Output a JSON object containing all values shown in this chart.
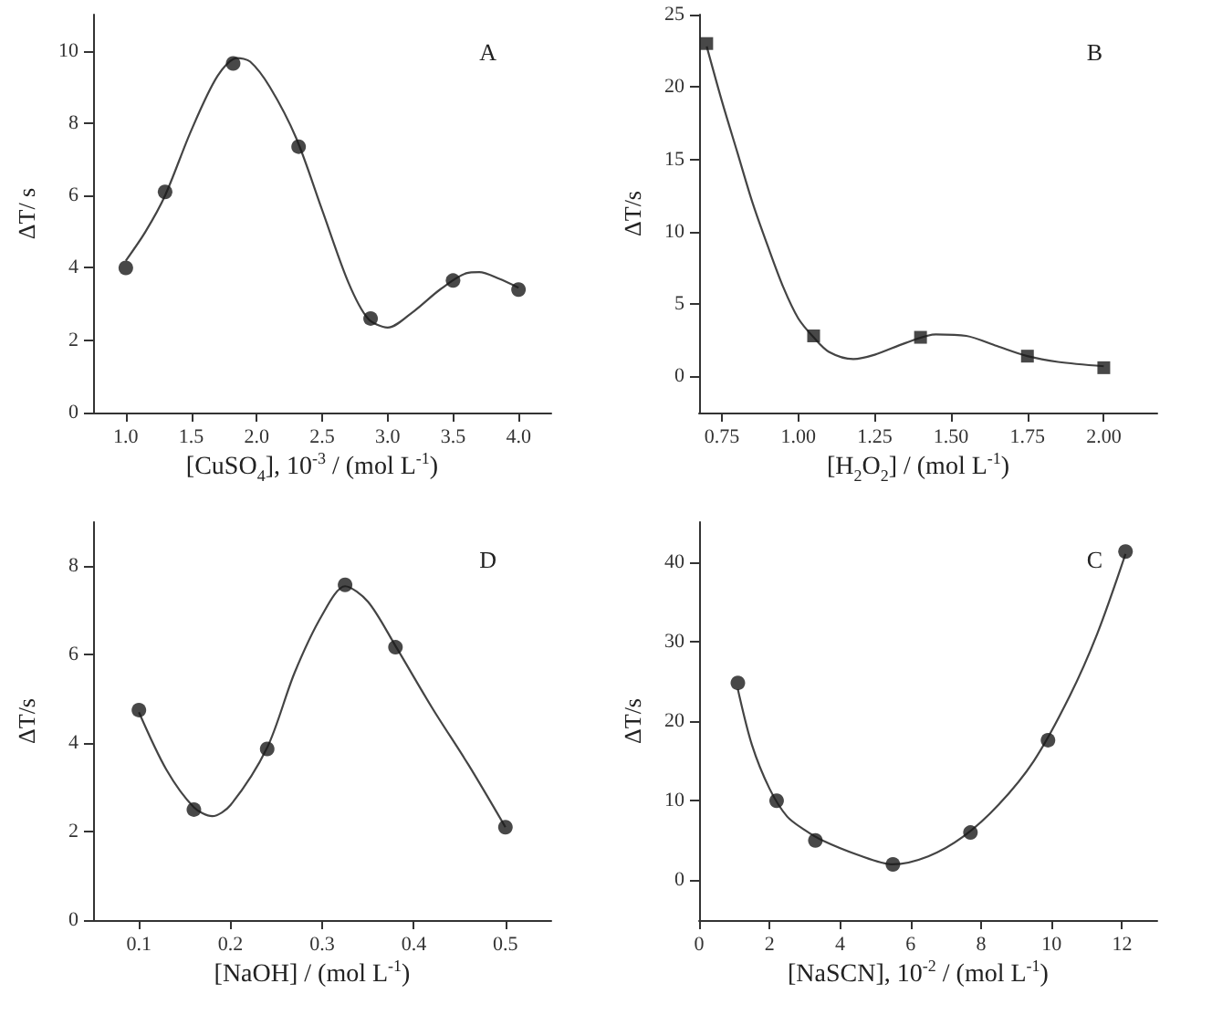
{
  "chart_data": [
    {
      "type": "scatter",
      "xlabel": "[CuSO$_{4}$], 10$^{-3}$ / (mol L$^{-1}$)",
      "ylabel": "ΔT/ s",
      "annotations": [
        "A"
      ],
      "xlim": [
        0.75,
        4.25
      ],
      "ylim": [
        0,
        11
      ],
      "xticks": [
        {
          "value": 1,
          "label": "1.0"
        },
        1.5,
        {
          "value": 2,
          "label": "2.0"
        },
        2.5,
        {
          "value": 3,
          "label": "3.0"
        },
        3.5,
        {
          "value": 4,
          "label": "4.0"
        }
      ],
      "yticks": [
        0,
        2,
        4,
        6,
        8,
        10
      ],
      "grid": false,
      "series": [
        {
          "marker": "circle",
          "color": "#1a1a1a",
          "x": [
            1.0,
            1.3,
            1.82,
            2.32,
            2.87,
            3.5,
            4.0
          ],
          "values": [
            4.0,
            6.1,
            9.65,
            7.35,
            2.6,
            3.65,
            3.4
          ]
        },
        {
          "type": "line",
          "marker": "none",
          "line_style": "solid",
          "color": "#444444",
          "x": [
            1.0,
            1.15,
            1.3,
            1.5,
            1.7,
            1.85,
            1.95,
            2.1,
            2.3,
            2.5,
            2.7,
            2.85,
            3.0,
            3.2,
            3.4,
            3.6,
            3.7,
            3.85,
            4.0
          ],
          "values": [
            4.2,
            5.0,
            6.0,
            7.8,
            9.3,
            9.8,
            9.7,
            9.0,
            7.6,
            5.6,
            3.6,
            2.6,
            2.35,
            2.8,
            3.4,
            3.85,
            3.88,
            3.7,
            3.45
          ]
        }
      ]
    },
    {
      "type": "scatter",
      "xlabel": "[H$_{2}$O$_{2}$] / (mol L$^{-1}$)",
      "ylabel": "ΔT/s",
      "annotations": [
        "B"
      ],
      "xlim": [
        0.675,
        2.175
      ],
      "ylim": [
        -2.5,
        25
      ],
      "xticks": [
        0.75,
        {
          "value": 1,
          "label": "1.00"
        },
        1.25,
        {
          "value": 1.5,
          "label": "1.50"
        },
        1.75,
        {
          "value": 2,
          "label": "2.00"
        }
      ],
      "yticks": [
        0,
        5,
        10,
        15,
        20,
        25
      ],
      "grid": false,
      "series": [
        {
          "marker": "square",
          "color": "#1a1a1a",
          "x": [
            0.7,
            1.05,
            1.4,
            1.75,
            2.0
          ],
          "values": [
            23,
            2.8,
            2.7,
            1.4,
            0.6
          ]
        },
        {
          "type": "line",
          "marker": "none",
          "line_style": "solid",
          "color": "#444444",
          "x": [
            0.7,
            0.75,
            0.8,
            0.85,
            0.9,
            0.95,
            1.0,
            1.05,
            1.1,
            1.18,
            1.25,
            1.35,
            1.45,
            1.55,
            1.65,
            1.75,
            1.85,
            2.0
          ],
          "values": [
            22.8,
            19,
            15.5,
            12,
            9,
            6.2,
            4.0,
            2.7,
            1.7,
            1.2,
            1.5,
            2.3,
            2.9,
            2.8,
            2.1,
            1.4,
            1.0,
            0.7
          ]
        }
      ]
    },
    {
      "type": "scatter",
      "xlabel": "[NaOH] / (mol L$^{-1}$)",
      "ylabel": "ΔT/s",
      "annotations": [
        "D"
      ],
      "xlim": [
        0.05,
        0.55
      ],
      "ylim": [
        0,
        9
      ],
      "xticks": [
        0.1,
        0.2,
        0.3,
        0.4,
        0.5
      ],
      "yticks": [
        0,
        2,
        4,
        6,
        8
      ],
      "grid": false,
      "series": [
        {
          "marker": "circle",
          "color": "#1a1a1a",
          "x": [
            0.1,
            0.16,
            0.24,
            0.325,
            0.38,
            0.5
          ],
          "values": [
            4.75,
            2.5,
            3.87,
            7.58,
            6.17,
            2.1
          ]
        },
        {
          "type": "line",
          "marker": "none",
          "line_style": "solid",
          "color": "#444444",
          "x": [
            0.1,
            0.13,
            0.16,
            0.18,
            0.2,
            0.24,
            0.27,
            0.3,
            0.325,
            0.35,
            0.38,
            0.42,
            0.46,
            0.5
          ],
          "values": [
            4.7,
            3.4,
            2.55,
            2.35,
            2.6,
            3.9,
            5.6,
            6.9,
            7.55,
            7.2,
            6.2,
            4.8,
            3.5,
            2.1
          ]
        }
      ]
    },
    {
      "type": "scatter",
      "xlabel": "[NaSCN], 10$^{-2}$ / (mol L$^{-1}$)",
      "ylabel": "ΔT/s",
      "annotations": [
        "C"
      ],
      "xlim": [
        0,
        13
      ],
      "ylim": [
        -5,
        45
      ],
      "xticks": [
        0,
        2,
        4,
        6,
        8,
        10,
        12
      ],
      "yticks": [
        0,
        10,
        20,
        30,
        40
      ],
      "grid": false,
      "series": [
        {
          "marker": "circle",
          "color": "#1a1a1a",
          "x": [
            1.1,
            2.2,
            3.3,
            5.5,
            7.7,
            9.9,
            12.1
          ],
          "values": [
            24.8,
            10,
            5,
            2,
            6,
            17.6,
            41.3
          ]
        },
        {
          "type": "line",
          "marker": "none",
          "line_style": "solid",
          "color": "#444444",
          "x": [
            1.1,
            1.5,
            2.0,
            2.5,
            3.0,
            3.5,
            4.5,
            5.5,
            6.5,
            7.5,
            8.5,
            9.5,
            10.5,
            11.3,
            12.1
          ],
          "values": [
            24,
            17,
            11.5,
            8,
            6.3,
            5,
            3.2,
            2.0,
            3,
            5.5,
            9.5,
            15,
            23,
            31,
            41
          ]
        }
      ]
    }
  ]
}
